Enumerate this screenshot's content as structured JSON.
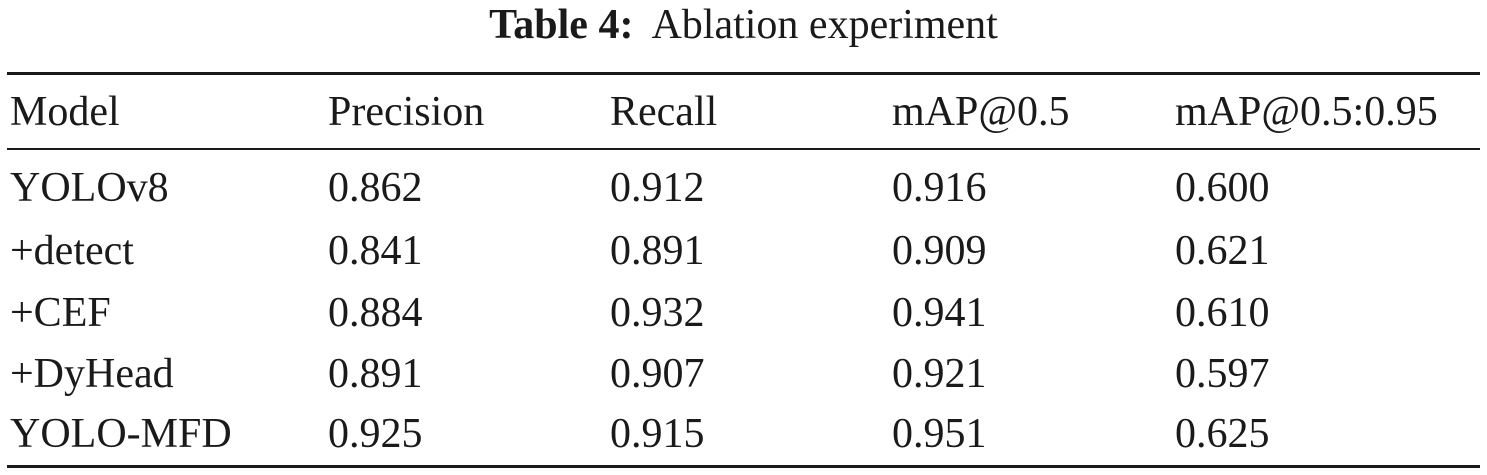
{
  "caption": {
    "label": "Table 4:",
    "text": "Ablation experiment"
  },
  "table": {
    "columns": [
      "Model",
      "Precision",
      "Recall",
      "mAP@0.5",
      "mAP@0.5:0.95"
    ],
    "rows": [
      [
        "YOLOv8",
        "0.862",
        "0.912",
        "0.916",
        "0.600"
      ],
      [
        "+detect",
        "0.841",
        "0.891",
        "0.909",
        "0.621"
      ],
      [
        "+CEF",
        "0.884",
        "0.932",
        "0.941",
        "0.610"
      ],
      [
        "+DyHead",
        "0.891",
        "0.907",
        "0.921",
        "0.597"
      ],
      [
        "YOLO-MFD",
        "0.925",
        "0.915",
        "0.951",
        "0.625"
      ]
    ]
  }
}
